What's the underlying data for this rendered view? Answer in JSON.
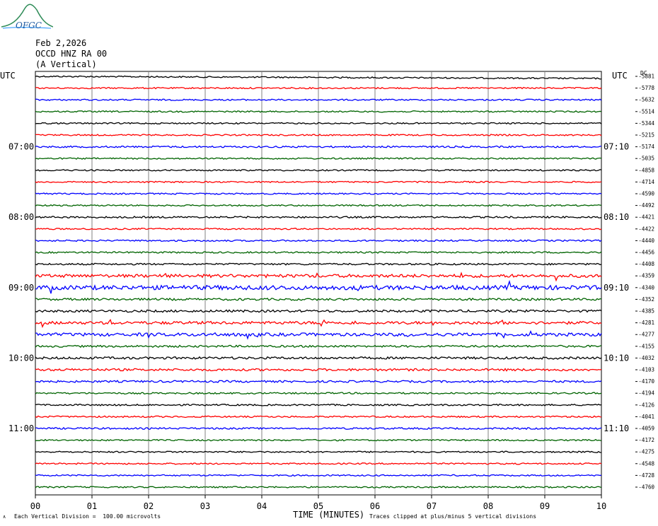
{
  "header": {
    "date": "Feb 2,2026",
    "station": "OCCD HNZ RA 00",
    "component": "(A Vertical)",
    "logo_text": "OFGC"
  },
  "colors": {
    "black": "#000000",
    "red": "#ff0000",
    "blue": "#0000ff",
    "green": "#006400",
    "grid": "#808080"
  },
  "footer": {
    "left": "Each Vertical Division =  100.00 microvolts",
    "right": "Traces clipped at plus/minus 5 vertical divisions",
    "xlabel": "TIME (MINUTES)"
  },
  "chart_data": {
    "type": "line",
    "title": "Feb 2,2026",
    "xlabel": "TIME (MINUTES)",
    "ylabel": "",
    "x_ticks": [
      "00",
      "01",
      "02",
      "03",
      "04",
      "05",
      "06",
      "07",
      "08",
      "09",
      "10"
    ],
    "xlim": [
      0,
      10
    ],
    "grid": true,
    "left_axis_label": "UTC",
    "right_axis_label": "UTC",
    "dc_label": "DC",
    "left_time_labels": [
      "07:00",
      "08:00",
      "09:00",
      "10:00",
      "11:00"
    ],
    "right_time_labels": [
      "07:10",
      "08:10",
      "09:10",
      "10:10",
      "11:10"
    ],
    "trace_colors": [
      "black",
      "red",
      "blue",
      "green"
    ],
    "traces": [
      {
        "dc": -5881,
        "amp": 1
      },
      {
        "dc": -5778,
        "amp": 1
      },
      {
        "dc": -5632,
        "amp": 1
      },
      {
        "dc": -5514,
        "amp": 1
      },
      {
        "dc": -5344,
        "amp": 1
      },
      {
        "dc": -5215,
        "amp": 1
      },
      {
        "dc": -5174,
        "amp": 1.2
      },
      {
        "dc": -5035,
        "amp": 1
      },
      {
        "dc": -4858,
        "amp": 1
      },
      {
        "dc": -4714,
        "amp": 1
      },
      {
        "dc": -4590,
        "amp": 1
      },
      {
        "dc": -4492,
        "amp": 1
      },
      {
        "dc": -4421,
        "amp": 1.2
      },
      {
        "dc": -4422,
        "amp": 1
      },
      {
        "dc": -4440,
        "amp": 1.1
      },
      {
        "dc": -4456,
        "amp": 1.1
      },
      {
        "dc": -4408,
        "amp": 1.2
      },
      {
        "dc": -4359,
        "amp": 2.2
      },
      {
        "dc": -4340,
        "amp": 3
      },
      {
        "dc": -4352,
        "amp": 1.5
      },
      {
        "dc": -4385,
        "amp": 1.6
      },
      {
        "dc": -4281,
        "amp": 2
      },
      {
        "dc": -4277,
        "amp": 2.2
      },
      {
        "dc": -4155,
        "amp": 1.4
      },
      {
        "dc": -4032,
        "amp": 1.6
      },
      {
        "dc": -4103,
        "amp": 1.6
      },
      {
        "dc": -4170,
        "amp": 1.4
      },
      {
        "dc": -4194,
        "amp": 1.1
      },
      {
        "dc": -4126,
        "amp": 1.1
      },
      {
        "dc": -4041,
        "amp": 1.1
      },
      {
        "dc": -4059,
        "amp": 1.2
      },
      {
        "dc": -4172,
        "amp": 1
      },
      {
        "dc": -4275,
        "amp": 1
      },
      {
        "dc": -4548,
        "amp": 1
      },
      {
        "dc": -4728,
        "amp": 1
      },
      {
        "dc": -4760,
        "amp": 1
      }
    ]
  }
}
